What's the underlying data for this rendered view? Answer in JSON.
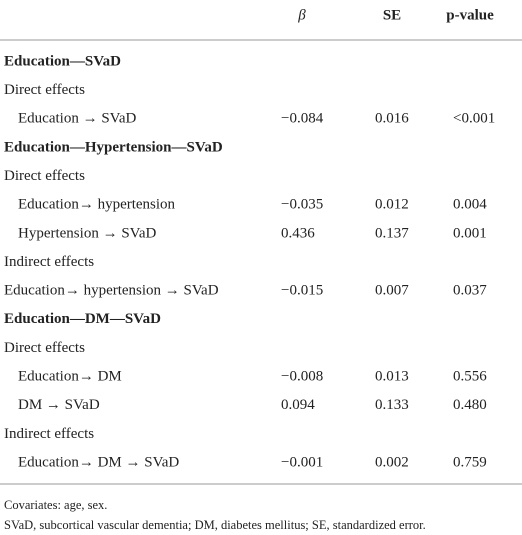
{
  "table": {
    "header": [
      "β",
      "SE",
      "p-value"
    ],
    "sections": [
      {
        "title": "Education—SVaD",
        "groups": [
          {
            "heading": "Direct effects",
            "rows": [
              {
                "label": "Education → SVaD",
                "indent": true,
                "values": [
                  "−0.084",
                  "0.016",
                  "<0.001"
                ]
              }
            ]
          }
        ]
      },
      {
        "title": "Education—Hypertension—SVaD",
        "groups": [
          {
            "heading": "Direct effects",
            "rows": [
              {
                "label": "Education→ hypertension",
                "indent": true,
                "values": [
                  "−0.035",
                  "0.012",
                  "0.004"
                ]
              },
              {
                "label": "Hypertension → SVaD",
                "indent": true,
                "values": [
                  "0.436",
                  "0.137",
                  "0.001"
                ]
              }
            ]
          },
          {
            "heading": "Indirect effects",
            "rows": [
              {
                "label": "Education→ hypertension → SVaD",
                "indent": false,
                "values": [
                  "−0.015",
                  "0.007",
                  "0.037"
                ]
              }
            ]
          }
        ]
      },
      {
        "title": "Education—DM—SVaD",
        "groups": [
          {
            "heading": "Direct effects",
            "rows": [
              {
                "label": "Education→ DM",
                "indent": true,
                "values": [
                  "−0.008",
                  "0.013",
                  "0.556"
                ]
              },
              {
                "label": "DM → SVaD",
                "indent": true,
                "values": [
                  "0.094",
                  "0.133",
                  "0.480"
                ]
              }
            ]
          },
          {
            "heading": "Indirect effects",
            "rows": [
              {
                "label": "Education→ DM → SVaD",
                "indent": true,
                "values": [
                  "−0.001",
                  "0.002",
                  "0.759"
                ]
              }
            ]
          }
        ]
      }
    ],
    "footnotes": [
      "Covariates: age, sex.",
      "SVaD, subcortical vascular dementia; DM, diabetes mellitus; SE, standardized error."
    ]
  }
}
